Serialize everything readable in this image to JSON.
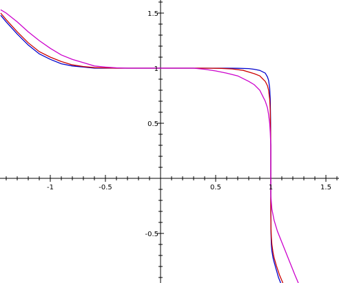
{
  "chart_data": {
    "type": "line",
    "title": "",
    "xlabel": "",
    "ylabel": "",
    "xlim": [
      -1.45,
      1.6
    ],
    "ylim": [
      -0.95,
      1.6
    ],
    "grid": false,
    "legend": "none",
    "x_ticks": {
      "major": [
        -1,
        -0.5,
        0.5,
        1,
        1.5
      ],
      "labels": [
        "-1",
        "-0.5",
        "0.5",
        "1",
        "1.5"
      ],
      "minor_step": 0.1
    },
    "y_ticks": {
      "major": [
        -0.5,
        0.5,
        1,
        1.5
      ],
      "labels": [
        "-0.5",
        "0.5",
        "1",
        "1.5"
      ],
      "minor_step": 0.1
    },
    "series": [
      {
        "color": "#0000cc",
        "points": [
          [
            -1.45,
            1.48
          ],
          [
            -1.4,
            1.42
          ],
          [
            -1.3,
            1.31
          ],
          [
            -1.2,
            1.21
          ],
          [
            -1.1,
            1.13
          ],
          [
            -1.0,
            1.08
          ],
          [
            -0.9,
            1.04
          ],
          [
            -0.8,
            1.02
          ],
          [
            -0.7,
            1.01
          ],
          [
            -0.6,
            1.0
          ],
          [
            -0.4,
            1.0
          ],
          [
            0,
            1.0
          ],
          [
            0.4,
            1.0
          ],
          [
            0.6,
            1.0
          ],
          [
            0.7,
            0.999
          ],
          [
            0.8,
            0.996
          ],
          [
            0.85,
            0.99
          ],
          [
            0.9,
            0.98
          ],
          [
            0.95,
            0.955
          ],
          [
            0.97,
            0.92
          ],
          [
            0.98,
            0.89
          ],
          [
            0.99,
            0.82
          ],
          [
            0.995,
            0.72
          ],
          [
            0.998,
            0.55
          ],
          [
            1.0,
            0.3
          ],
          [
            1.0,
            0.0
          ],
          [
            1.0,
            -0.3
          ],
          [
            1.002,
            -0.5
          ],
          [
            1.005,
            -0.6
          ],
          [
            1.01,
            -0.66
          ],
          [
            1.02,
            -0.72
          ],
          [
            1.03,
            -0.76
          ],
          [
            1.05,
            -0.83
          ],
          [
            1.07,
            -0.9
          ],
          [
            1.09,
            -0.95
          ]
        ]
      },
      {
        "color": "#cc0000",
        "points": [
          [
            -1.45,
            1.5
          ],
          [
            -1.4,
            1.44
          ],
          [
            -1.3,
            1.33
          ],
          [
            -1.2,
            1.23
          ],
          [
            -1.1,
            1.15
          ],
          [
            -1.0,
            1.1
          ],
          [
            -0.9,
            1.06
          ],
          [
            -0.8,
            1.03
          ],
          [
            -0.7,
            1.015
          ],
          [
            -0.6,
            1.005
          ],
          [
            -0.4,
            1.0
          ],
          [
            0,
            1.0
          ],
          [
            0.4,
            1.0
          ],
          [
            0.55,
            0.998
          ],
          [
            0.65,
            0.993
          ],
          [
            0.75,
            0.98
          ],
          [
            0.85,
            0.95
          ],
          [
            0.9,
            0.93
          ],
          [
            0.95,
            0.88
          ],
          [
            0.97,
            0.84
          ],
          [
            0.98,
            0.8
          ],
          [
            0.99,
            0.72
          ],
          [
            0.995,
            0.62
          ],
          [
            1.0,
            0.3
          ],
          [
            1.0,
            0.0
          ],
          [
            1.0,
            -0.3
          ],
          [
            1.002,
            -0.45
          ],
          [
            1.005,
            -0.53
          ],
          [
            1.01,
            -0.6
          ],
          [
            1.02,
            -0.67
          ],
          [
            1.03,
            -0.72
          ],
          [
            1.05,
            -0.79
          ],
          [
            1.08,
            -0.88
          ],
          [
            1.11,
            -0.95
          ]
        ]
      },
      {
        "color": "#cc00cc",
        "points": [
          [
            -1.45,
            1.53
          ],
          [
            -1.4,
            1.5
          ],
          [
            -1.3,
            1.42
          ],
          [
            -1.2,
            1.33
          ],
          [
            -1.1,
            1.25
          ],
          [
            -1.0,
            1.18
          ],
          [
            -0.9,
            1.12
          ],
          [
            -0.8,
            1.08
          ],
          [
            -0.7,
            1.05
          ],
          [
            -0.6,
            1.02
          ],
          [
            -0.5,
            1.01
          ],
          [
            -0.4,
            1.003
          ],
          [
            -0.3,
            1.0
          ],
          [
            0,
            1.0
          ],
          [
            0.3,
            1.0
          ],
          [
            0.4,
            0.99
          ],
          [
            0.5,
            0.975
          ],
          [
            0.6,
            0.955
          ],
          [
            0.7,
            0.93
          ],
          [
            0.8,
            0.88
          ],
          [
            0.85,
            0.85
          ],
          [
            0.9,
            0.8
          ],
          [
            0.95,
            0.7
          ],
          [
            0.97,
            0.64
          ],
          [
            0.98,
            0.58
          ],
          [
            0.99,
            0.5
          ],
          [
            0.995,
            0.42
          ],
          [
            1.0,
            0.3
          ],
          [
            1.0,
            0.0
          ],
          [
            1.0,
            -0.15
          ],
          [
            1.005,
            -0.22
          ],
          [
            1.01,
            -0.28
          ],
          [
            1.03,
            -0.38
          ],
          [
            1.06,
            -0.48
          ],
          [
            1.1,
            -0.58
          ],
          [
            1.14,
            -0.68
          ],
          [
            1.18,
            -0.78
          ],
          [
            1.22,
            -0.88
          ],
          [
            1.25,
            -0.95
          ]
        ]
      }
    ]
  }
}
